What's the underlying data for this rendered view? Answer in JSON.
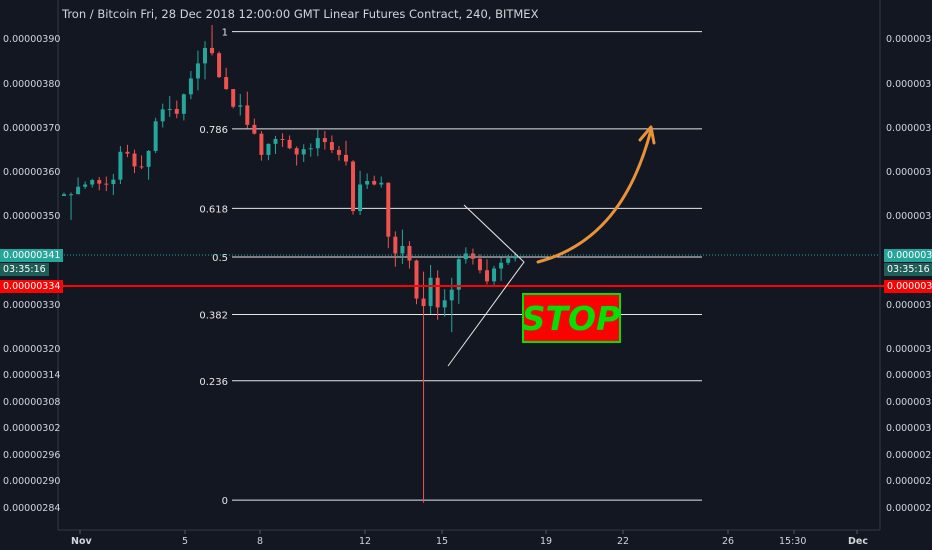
{
  "header": {
    "title": "Tron / Bitcoin Fri, 28 Dec 2018 12:00:00 GMT Linear Futures Contract, 240, BITMEX"
  },
  "colors": {
    "background": "#131722",
    "up": "#26a69a",
    "down": "#ef5350",
    "stop_line": "#ff0000",
    "stop_box": "#ff0000",
    "stop_border": "#00e000",
    "stop_text": "#00e000",
    "arrow": "#e8923a",
    "price_tag": "#26a69a"
  },
  "price_axis": {
    "left_labels": [
      "0.00000390",
      "0.00000380",
      "0.00000370",
      "0.00000360",
      "0.00000350",
      "0.00000330",
      "0.00000320",
      "0.00000314",
      "0.00000308",
      "0.00000302",
      "0.00000296",
      "0.00000290",
      "0.00000284"
    ],
    "right_labels": [
      "0.00000390",
      "0.00000380",
      "0.00000370",
      "0.00000360",
      "0.00000350",
      "0.00000330",
      "0.00000320",
      "0.00000314",
      "0.00000308",
      "0.00000302",
      "0.00000296",
      "0.00000290",
      "0.00000284"
    ]
  },
  "time_axis": {
    "labels": [
      "Nov",
      "5",
      "8",
      "12",
      "15",
      "19",
      "22",
      "26",
      "15:30",
      "Dec"
    ]
  },
  "current_price": {
    "value": "0.00000341",
    "countdown": "03:35:16"
  },
  "stop_level": {
    "value": "0.00000334",
    "label": "STOP"
  },
  "chart_data": {
    "type": "candlestick",
    "title": "Tron / Bitcoin Fri, 28 Dec 2018 12:00:00 GMT Linear Futures Contract, 240, BITMEX",
    "y_unit": "BTC",
    "fibonacci_levels": [
      {
        "label": "1",
        "price": 3.92e-06
      },
      {
        "label": "0.786",
        "price": 3.7e-06
      },
      {
        "label": "0.618",
        "price": 3.52e-06
      },
      {
        "label": "0.5",
        "price": 3.41e-06
      },
      {
        "label": "0.382",
        "price": 3.28e-06
      },
      {
        "label": "0.236",
        "price": 3.13e-06
      },
      {
        "label": "0",
        "price": 2.86e-06
      }
    ],
    "current_price": 3.41e-06,
    "stop_price": 3.34e-06,
    "candles": [
      [
        3.548e-06,
        3.556e-06,
        3.548e-06,
        3.552e-06
      ],
      [
        3.552e-06,
        3.556e-06,
        3.494e-06,
        3.552e-06
      ],
      [
        3.552e-06,
        3.59e-06,
        3.552e-06,
        3.569e-06
      ],
      [
        3.569e-06,
        3.581e-06,
        3.564e-06,
        3.574e-06
      ],
      [
        3.574e-06,
        3.587e-06,
        3.567e-06,
        3.584e-06
      ],
      [
        3.584e-06,
        3.591e-06,
        3.561e-06,
        3.576e-06
      ],
      [
        3.576e-06,
        3.592e-06,
        3.559e-06,
        3.575e-06
      ],
      [
        3.575e-06,
        3.598e-06,
        3.55e-06,
        3.585e-06
      ],
      [
        3.585e-06,
        3.661e-06,
        3.575e-06,
        3.648e-06
      ],
      [
        3.648e-06,
        3.664e-06,
        3.636e-06,
        3.644e-06
      ],
      [
        3.644e-06,
        3.653e-06,
        3.6e-06,
        3.615e-06
      ],
      [
        3.615e-06,
        3.64e-06,
        3.609e-06,
        3.614e-06
      ],
      [
        3.614e-06,
        3.652e-06,
        3.585e-06,
        3.65e-06
      ],
      [
        3.65e-06,
        3.725e-06,
        3.645e-06,
        3.717e-06
      ],
      [
        3.717e-06,
        3.757e-06,
        3.703e-06,
        3.744e-06
      ],
      [
        3.744e-06,
        3.774e-06,
        3.727e-06,
        3.745e-06
      ],
      [
        3.745e-06,
        3.764e-06,
        3.724e-06,
        3.734e-06
      ],
      [
        3.734e-06,
        3.78e-06,
        3.719e-06,
        3.778e-06
      ],
      [
        3.778e-06,
        3.831e-06,
        3.767e-06,
        3.814e-06
      ],
      [
        3.814e-06,
        3.877e-06,
        3.787e-06,
        3.848e-06
      ],
      [
        3.848e-06,
        3.898e-06,
        3.812e-06,
        3.883e-06
      ],
      [
        3.883e-06,
        3.935e-06,
        3.866e-06,
        3.871e-06
      ],
      [
        3.871e-06,
        3.875e-06,
        3.815e-06,
        3.817e-06
      ],
      [
        3.817e-06,
        3.838e-06,
        3.788e-06,
        3.79e-06
      ],
      [
        3.79e-06,
        3.79e-06,
        3.746e-06,
        3.75e-06
      ],
      [
        3.75e-06,
        3.779e-06,
        3.73e-06,
        3.753e-06
      ],
      [
        3.753e-06,
        3.784e-06,
        3.701e-06,
        3.709e-06
      ],
      [
        3.709e-06,
        3.723e-06,
        3.687e-06,
        3.689e-06
      ],
      [
        3.689e-06,
        3.695e-06,
        3.628e-06,
        3.641e-06
      ],
      [
        3.641e-06,
        3.667e-06,
        3.629e-06,
        3.666e-06
      ],
      [
        3.666e-06,
        3.684e-06,
        3.643e-06,
        3.677e-06
      ],
      [
        3.677e-06,
        3.69e-06,
        3.659e-06,
        3.675e-06
      ],
      [
        3.675e-06,
        3.685e-06,
        3.654e-06,
        3.656e-06
      ],
      [
        3.656e-06,
        3.66e-06,
        3.617e-06,
        3.642e-06
      ],
      [
        3.642e-06,
        3.665e-06,
        3.625e-06,
        3.654e-06
      ],
      [
        3.654e-06,
        3.667e-06,
        3.637e-06,
        3.656e-06
      ],
      [
        3.656e-06,
        3.698e-06,
        3.638e-06,
        3.679e-06
      ],
      [
        3.679e-06,
        3.695e-06,
        3.653e-06,
        3.67e-06
      ],
      [
        3.67e-06,
        3.685e-06,
        3.645e-06,
        3.652e-06
      ],
      [
        3.652e-06,
        3.661e-06,
        3.628e-06,
        3.641e-06
      ],
      [
        3.641e-06,
        3.673e-06,
        3.617e-06,
        3.626e-06
      ],
      [
        3.626e-06,
        3.629e-06,
        3.506e-06,
        3.514e-06
      ],
      [
        3.514e-06,
        3.605e-06,
        3.505e-06,
        3.574e-06
      ],
      [
        3.574e-06,
        3.599e-06,
        3.564e-06,
        3.582e-06
      ],
      [
        3.582e-06,
        3.594e-06,
        3.572e-06,
        3.574e-06
      ],
      [
        3.574e-06,
        3.592e-06,
        3.567e-06,
        3.578e-06
      ],
      [
        3.578e-06,
        3.579e-06,
        3.43e-06,
        3.456e-06
      ],
      [
        3.456e-06,
        3.468e-06,
        3.388e-06,
        3.418e-06
      ],
      [
        3.418e-06,
        3.472e-06,
        3.394e-06,
        3.435e-06
      ],
      [
        3.435e-06,
        3.446e-06,
        3.384e-06,
        3.402e-06
      ],
      [
        3.402e-06,
        3.404e-06,
        3.303e-06,
        3.316e-06
      ],
      [
        3.316e-06,
        3.377e-06,
        2.854e-06,
        3.299e-06
      ],
      [
        3.299e-06,
        3.392e-06,
        3.281e-06,
        3.363e-06
      ],
      [
        3.363e-06,
        3.38e-06,
        3.268e-06,
        3.296e-06
      ],
      [
        3.296e-06,
        3.337e-06,
        3.275e-06,
        3.312e-06
      ],
      [
        3.312e-06,
        3.363e-06,
        3.24e-06,
        3.336e-06
      ],
      [
        3.336e-06,
        3.413e-06,
        3.304e-06,
        3.405e-06
      ],
      [
        3.405e-06,
        3.432e-06,
        3.395e-06,
        3.418e-06
      ],
      [
        3.418e-06,
        3.429e-06,
        3.393e-06,
        3.406e-06
      ],
      [
        3.406e-06,
        3.416e-06,
        3.373e-06,
        3.38e-06
      ],
      [
        3.38e-06,
        3.405e-06,
        3.348e-06,
        3.355e-06
      ],
      [
        3.355e-06,
        3.39e-06,
        3.347e-06,
        3.384e-06
      ],
      [
        3.384e-06,
        3.409e-06,
        3.356e-06,
        3.397e-06
      ],
      [
        3.397e-06,
        3.415e-06,
        3.392e-06,
        3.407e-06
      ],
      [
        3.407e-06,
        3.42e-06,
        3.4e-06,
        3.412e-06
      ]
    ]
  }
}
